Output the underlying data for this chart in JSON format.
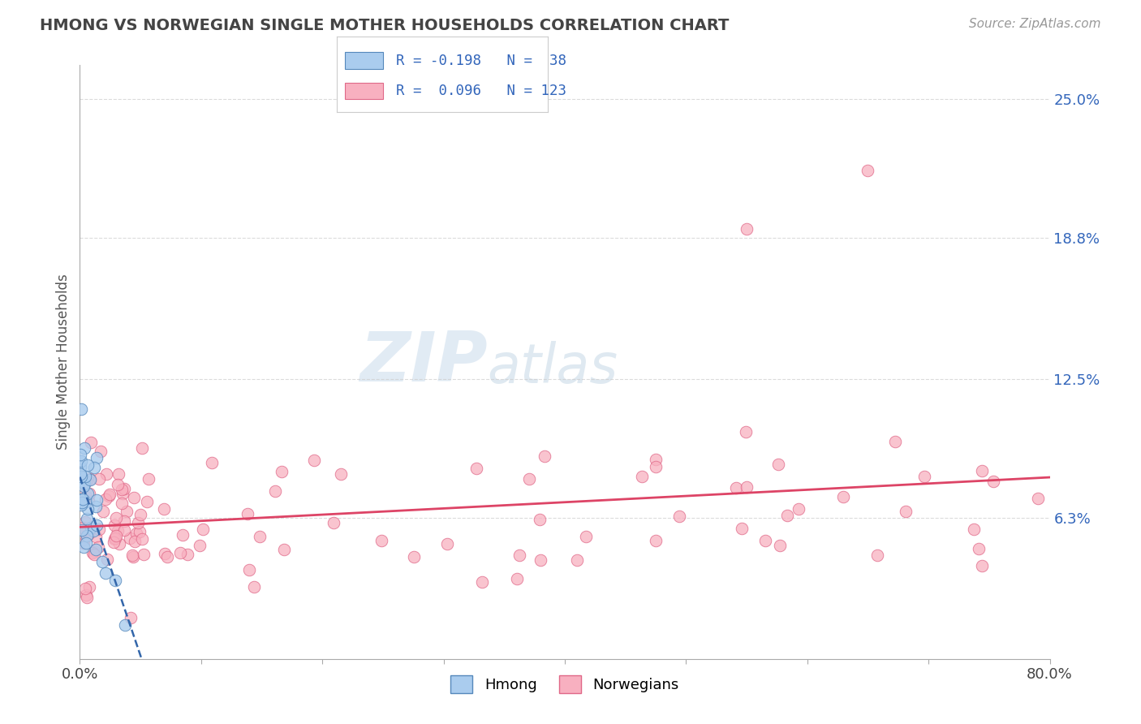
{
  "title": "HMONG VS NORWEGIAN SINGLE MOTHER HOUSEHOLDS CORRELATION CHART",
  "source_text": "Source: ZipAtlas.com",
  "ylabel": "Single Mother Households",
  "watermark_part1": "ZIP",
  "watermark_part2": "atlas",
  "xlim": [
    0.0,
    0.8
  ],
  "ylim": [
    0.0,
    0.265
  ],
  "yticks_right": [
    0.063,
    0.125,
    0.188,
    0.25
  ],
  "yticks_right_labels": [
    "6.3%",
    "12.5%",
    "18.8%",
    "25.0%"
  ],
  "hmong_color": "#aaccee",
  "norwegian_color": "#f8b0c0",
  "hmong_edge_color": "#5588bb",
  "norwegian_edge_color": "#e06888",
  "trendline_hmong_color": "#3366aa",
  "trendline_norwegian_color": "#dd4466",
  "grid_color": "#cccccc",
  "background_color": "#ffffff",
  "title_color": "#444444",
  "axis_label_color": "#555555",
  "tick_label_color": "#444444",
  "legend_text_color": "#3366bb",
  "seed": 99
}
